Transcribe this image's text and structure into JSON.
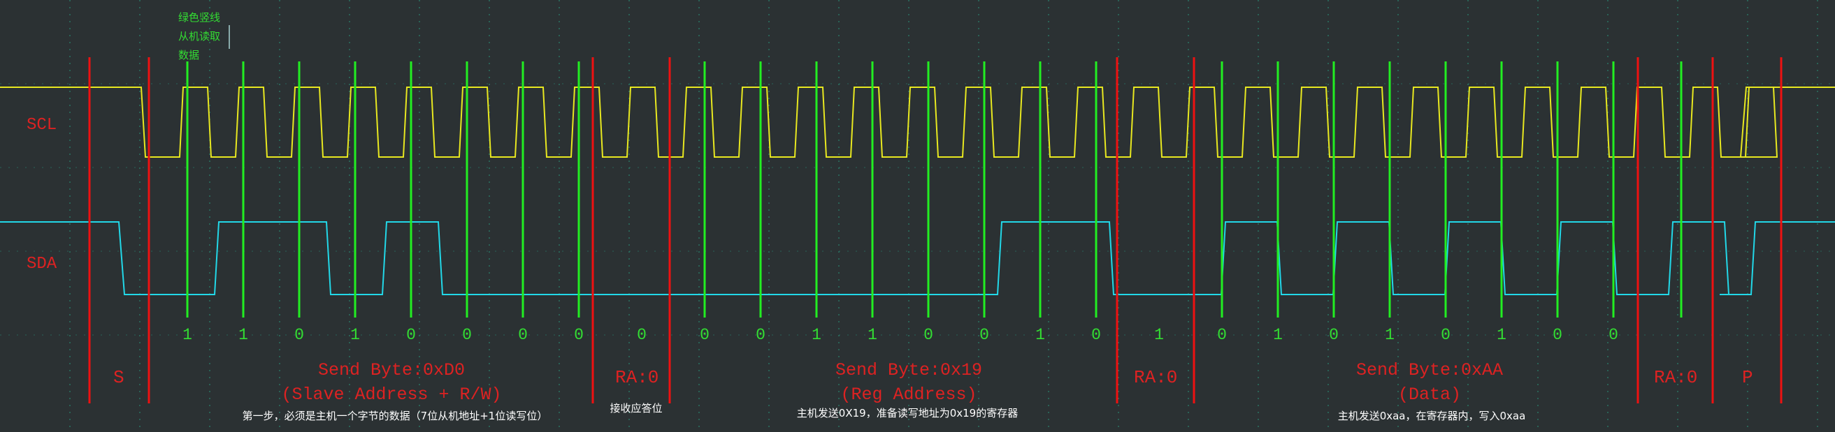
{
  "colors": {
    "background": "#2b3133",
    "scl": "#e8e820",
    "sda": "#22d8e8",
    "bit_marker": "#22ee22",
    "boundary": "#ee1111",
    "label": "#dd2222",
    "bit_text": "#33dd33",
    "note_text": "#ffffff",
    "legend_text": "#33dd33",
    "grid": "#2aa88a"
  },
  "legend": [
    "绿色竖线",
    "从机读取",
    "数据"
  ],
  "channels": {
    "scl": "SCL",
    "sda": "SDA"
  },
  "markers": {
    "start": "S",
    "stop": "P",
    "ack_label": "RA:0"
  },
  "bits": [
    "1",
    "1",
    "0",
    "1",
    "0",
    "0",
    "0",
    "0",
    "0",
    "0",
    "0",
    "1",
    "1",
    "0",
    "0",
    "1",
    "0",
    "1",
    "0",
    "1",
    "0",
    "1",
    "0",
    "1",
    "0",
    "0"
  ],
  "segments": [
    {
      "title": "Send Byte:0xD0",
      "subtitle": "(Slave Address + R/W)",
      "note": "第一步，必须是主机一个字节的数据（7位从机地址+1位读写位）"
    },
    {
      "title": "Send Byte:0x19",
      "subtitle": "(Reg Address)",
      "note": "主机发送0X19，准备读写地址为0x19的寄存器"
    },
    {
      "title": "Send Byte:0xAA",
      "subtitle": "(Data)",
      "note": "主机发送0xaa，在寄存器内，写入0xaa"
    }
  ],
  "ack_notes": [
    "接收应答位"
  ]
}
